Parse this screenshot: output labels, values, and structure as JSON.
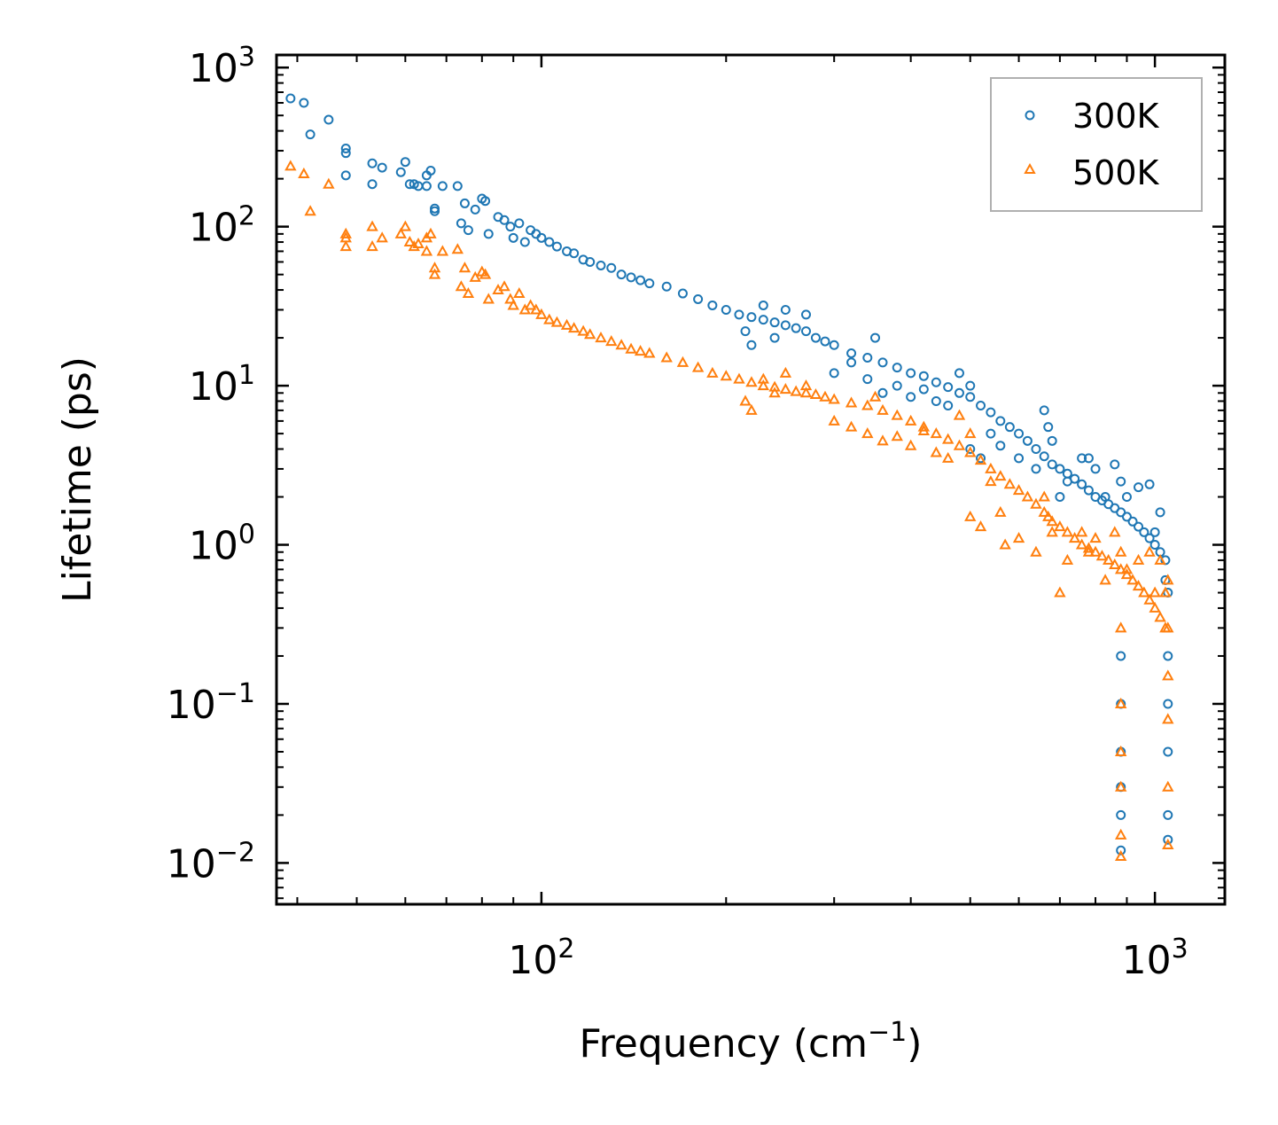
{
  "chart_data": {
    "type": "scatter",
    "title": "",
    "xlabel": "Frequency (cm",
    "xlabel_sup": "−1",
    "xlabel_end": ")",
    "ylabel": "Lifetime (ps)",
    "xscale": "log",
    "yscale": "log",
    "xlim": [
      37,
      1300
    ],
    "ylim": [
      0.0055,
      1200
    ],
    "x_ticks": [
      {
        "value": 100,
        "base": "10",
        "exp": "2"
      },
      {
        "value": 1000,
        "base": "10",
        "exp": "3"
      }
    ],
    "y_ticks": [
      {
        "value": 0.01,
        "base": "10",
        "exp": "−2"
      },
      {
        "value": 0.1,
        "base": "10",
        "exp": "−1"
      },
      {
        "value": 1,
        "base": "10",
        "exp": "0"
      },
      {
        "value": 10,
        "base": "10",
        "exp": "1"
      },
      {
        "value": 100,
        "base": "10",
        "exp": "2"
      },
      {
        "value": 1000,
        "base": "10",
        "exp": "3"
      }
    ],
    "legend_position": "top-right",
    "series": [
      {
        "name": "300K",
        "marker": "circle",
        "color": "#1f77b4",
        "points": [
          [
            39,
            640
          ],
          [
            41,
            600
          ],
          [
            42,
            380
          ],
          [
            45,
            470
          ],
          [
            48,
            310
          ],
          [
            48,
            290
          ],
          [
            48,
            210
          ],
          [
            53,
            250
          ],
          [
            53,
            185
          ],
          [
            55,
            235
          ],
          [
            59,
            220
          ],
          [
            60,
            255
          ],
          [
            61,
            185
          ],
          [
            62,
            185
          ],
          [
            63,
            180
          ],
          [
            65,
            210
          ],
          [
            65,
            180
          ],
          [
            66,
            225
          ],
          [
            67,
            130
          ],
          [
            67,
            125
          ],
          [
            69,
            180
          ],
          [
            73,
            180
          ],
          [
            74,
            105
          ],
          [
            75,
            140
          ],
          [
            76,
            95
          ],
          [
            78,
            128
          ],
          [
            80,
            150
          ],
          [
            81,
            145
          ],
          [
            82,
            90
          ],
          [
            85,
            115
          ],
          [
            87,
            110
          ],
          [
            89,
            100
          ],
          [
            90,
            85
          ],
          [
            92,
            105
          ],
          [
            94,
            80
          ],
          [
            96,
            95
          ],
          [
            98,
            90
          ],
          [
            100,
            85
          ],
          [
            103,
            80
          ],
          [
            106,
            75
          ],
          [
            110,
            70
          ],
          [
            113,
            68
          ],
          [
            117,
            62
          ],
          [
            120,
            60
          ],
          [
            125,
            57
          ],
          [
            130,
            55
          ],
          [
            135,
            50
          ],
          [
            140,
            48
          ],
          [
            145,
            46
          ],
          [
            150,
            44
          ],
          [
            160,
            42
          ],
          [
            170,
            38
          ],
          [
            180,
            35
          ],
          [
            190,
            32
          ],
          [
            200,
            30
          ],
          [
            210,
            28
          ],
          [
            220,
            27
          ],
          [
            230,
            26
          ],
          [
            240,
            25
          ],
          [
            250,
            24
          ],
          [
            260,
            23
          ],
          [
            270,
            22
          ],
          [
            280,
            20
          ],
          [
            290,
            19
          ],
          [
            300,
            18
          ],
          [
            320,
            16
          ],
          [
            340,
            15
          ],
          [
            360,
            14
          ],
          [
            380,
            13
          ],
          [
            400,
            12
          ],
          [
            420,
            11.5
          ],
          [
            440,
            10.5
          ],
          [
            460,
            9.8
          ],
          [
            480,
            9.0
          ],
          [
            500,
            8.5
          ],
          [
            520,
            7.5
          ],
          [
            540,
            6.8
          ],
          [
            560,
            6.0
          ],
          [
            580,
            5.5
          ],
          [
            600,
            5.0
          ],
          [
            620,
            4.5
          ],
          [
            640,
            4.0
          ],
          [
            660,
            3.6
          ],
          [
            680,
            3.2
          ],
          [
            700,
            3.0
          ],
          [
            720,
            2.8
          ],
          [
            740,
            2.6
          ],
          [
            760,
            2.4
          ],
          [
            780,
            2.2
          ],
          [
            800,
            2.0
          ],
          [
            820,
            1.9
          ],
          [
            840,
            1.8
          ],
          [
            860,
            1.7
          ],
          [
            880,
            1.6
          ],
          [
            900,
            1.5
          ],
          [
            920,
            1.4
          ],
          [
            940,
            1.3
          ],
          [
            960,
            1.2
          ],
          [
            980,
            1.1
          ],
          [
            1000,
            1.0
          ],
          [
            1020,
            0.9
          ],
          [
            1040,
            0.8
          ],
          [
            500,
            4.0
          ],
          [
            520,
            3.5
          ],
          [
            540,
            5.0
          ],
          [
            560,
            4.2
          ],
          [
            600,
            3.5
          ],
          [
            640,
            3.0
          ],
          [
            660,
            7.0
          ],
          [
            670,
            5.5
          ],
          [
            680,
            4.5
          ],
          [
            700,
            2.0
          ],
          [
            720,
            2.5
          ],
          [
            760,
            3.5
          ],
          [
            780,
            3.5
          ],
          [
            800,
            3.0
          ],
          [
            830,
            2.0
          ],
          [
            860,
            3.2
          ],
          [
            880,
            2.5
          ],
          [
            900,
            2.0
          ],
          [
            940,
            2.3
          ],
          [
            980,
            2.4
          ],
          [
            1000,
            1.2
          ],
          [
            1020,
            1.6
          ],
          [
            1040,
            0.6
          ],
          [
            1050,
            0.5
          ],
          [
            880,
            0.2
          ],
          [
            880,
            0.1
          ],
          [
            880,
            0.05
          ],
          [
            880,
            0.03
          ],
          [
            880,
            0.02
          ],
          [
            880,
            0.012
          ],
          [
            1050,
            0.2
          ],
          [
            1050,
            0.1
          ],
          [
            1050,
            0.05
          ],
          [
            1050,
            0.02
          ],
          [
            1050,
            0.014
          ],
          [
            300,
            12
          ],
          [
            320,
            14
          ],
          [
            340,
            11
          ],
          [
            360,
            9
          ],
          [
            380,
            10
          ],
          [
            400,
            8.5
          ],
          [
            420,
            9.5
          ],
          [
            440,
            8
          ],
          [
            460,
            7.5
          ],
          [
            480,
            12
          ],
          [
            500,
            10
          ],
          [
            350,
            20
          ],
          [
            250,
            30
          ],
          [
            270,
            28
          ],
          [
            230,
            32
          ],
          [
            215,
            22
          ],
          [
            220,
            18
          ],
          [
            240,
            20
          ]
        ]
      },
      {
        "name": "500K",
        "marker": "triangle",
        "color": "#ff7f0e",
        "points": [
          [
            39,
            240
          ],
          [
            41,
            215
          ],
          [
            42,
            125
          ],
          [
            45,
            185
          ],
          [
            48,
            90
          ],
          [
            48,
            85
          ],
          [
            48,
            75
          ],
          [
            53,
            100
          ],
          [
            53,
            75
          ],
          [
            55,
            85
          ],
          [
            59,
            90
          ],
          [
            60,
            100
          ],
          [
            61,
            80
          ],
          [
            62,
            75
          ],
          [
            63,
            78
          ],
          [
            65,
            85
          ],
          [
            65,
            70
          ],
          [
            66,
            90
          ],
          [
            67,
            55
          ],
          [
            67,
            50
          ],
          [
            69,
            70
          ],
          [
            73,
            72
          ],
          [
            74,
            42
          ],
          [
            75,
            55
          ],
          [
            76,
            38
          ],
          [
            78,
            48
          ],
          [
            80,
            52
          ],
          [
            81,
            50
          ],
          [
            82,
            35
          ],
          [
            85,
            40
          ],
          [
            87,
            42
          ],
          [
            89,
            35
          ],
          [
            90,
            32
          ],
          [
            92,
            38
          ],
          [
            94,
            30
          ],
          [
            96,
            32
          ],
          [
            98,
            30
          ],
          [
            100,
            28
          ],
          [
            103,
            26
          ],
          [
            106,
            25
          ],
          [
            110,
            24
          ],
          [
            113,
            23
          ],
          [
            117,
            22
          ],
          [
            120,
            21
          ],
          [
            125,
            20
          ],
          [
            130,
            19
          ],
          [
            135,
            18
          ],
          [
            140,
            17
          ],
          [
            145,
            16.5
          ],
          [
            150,
            16
          ],
          [
            160,
            15
          ],
          [
            170,
            14
          ],
          [
            180,
            13
          ],
          [
            190,
            12
          ],
          [
            200,
            11.5
          ],
          [
            210,
            11
          ],
          [
            220,
            10.5
          ],
          [
            230,
            10
          ],
          [
            240,
            9.8
          ],
          [
            250,
            9.5
          ],
          [
            260,
            9.2
          ],
          [
            270,
            9.0
          ],
          [
            280,
            8.8
          ],
          [
            290,
            8.5
          ],
          [
            300,
            8.2
          ],
          [
            320,
            7.8
          ],
          [
            340,
            7.5
          ],
          [
            360,
            7.0
          ],
          [
            380,
            6.5
          ],
          [
            400,
            6.0
          ],
          [
            420,
            5.5
          ],
          [
            440,
            5.0
          ],
          [
            460,
            4.6
          ],
          [
            480,
            4.2
          ],
          [
            500,
            3.8
          ],
          [
            520,
            3.4
          ],
          [
            540,
            3.0
          ],
          [
            560,
            2.7
          ],
          [
            580,
            2.4
          ],
          [
            600,
            2.2
          ],
          [
            620,
            2.0
          ],
          [
            640,
            1.8
          ],
          [
            660,
            1.6
          ],
          [
            680,
            1.4
          ],
          [
            700,
            1.3
          ],
          [
            720,
            1.2
          ],
          [
            740,
            1.1
          ],
          [
            760,
            1.0
          ],
          [
            780,
            0.95
          ],
          [
            800,
            0.9
          ],
          [
            820,
            0.85
          ],
          [
            840,
            0.8
          ],
          [
            860,
            0.75
          ],
          [
            880,
            0.7
          ],
          [
            900,
            0.65
          ],
          [
            920,
            0.6
          ],
          [
            940,
            0.55
          ],
          [
            960,
            0.5
          ],
          [
            980,
            0.45
          ],
          [
            1000,
            0.4
          ],
          [
            1020,
            0.35
          ],
          [
            1040,
            0.3
          ],
          [
            500,
            1.5
          ],
          [
            520,
            1.3
          ],
          [
            540,
            2.5
          ],
          [
            560,
            1.6
          ],
          [
            600,
            1.1
          ],
          [
            640,
            0.9
          ],
          [
            660,
            2.0
          ],
          [
            670,
            1.5
          ],
          [
            680,
            1.2
          ],
          [
            700,
            0.5
          ],
          [
            720,
            0.8
          ],
          [
            760,
            1.2
          ],
          [
            780,
            0.9
          ],
          [
            800,
            1.1
          ],
          [
            830,
            0.6
          ],
          [
            860,
            1.2
          ],
          [
            880,
            0.9
          ],
          [
            900,
            0.7
          ],
          [
            940,
            0.8
          ],
          [
            980,
            0.9
          ],
          [
            1000,
            0.5
          ],
          [
            1020,
            0.8
          ],
          [
            1040,
            0.5
          ],
          [
            1050,
            0.6
          ],
          [
            880,
            0.3
          ],
          [
            880,
            0.1
          ],
          [
            880,
            0.05
          ],
          [
            880,
            0.03
          ],
          [
            880,
            0.015
          ],
          [
            880,
            0.011
          ],
          [
            1050,
            0.3
          ],
          [
            1050,
            0.15
          ],
          [
            1050,
            0.08
          ],
          [
            1050,
            0.03
          ],
          [
            1050,
            0.013
          ],
          [
            300,
            6
          ],
          [
            320,
            5.5
          ],
          [
            340,
            5
          ],
          [
            360,
            4.5
          ],
          [
            380,
            4.8
          ],
          [
            400,
            4.2
          ],
          [
            420,
            5.2
          ],
          [
            440,
            3.8
          ],
          [
            460,
            3.5
          ],
          [
            480,
            6.5
          ],
          [
            500,
            5
          ],
          [
            350,
            8.5
          ],
          [
            250,
            12
          ],
          [
            270,
            10
          ],
          [
            230,
            11
          ],
          [
            215,
            8
          ],
          [
            220,
            7
          ],
          [
            240,
            9
          ],
          [
            570,
            1.0
          ]
        ]
      }
    ]
  }
}
